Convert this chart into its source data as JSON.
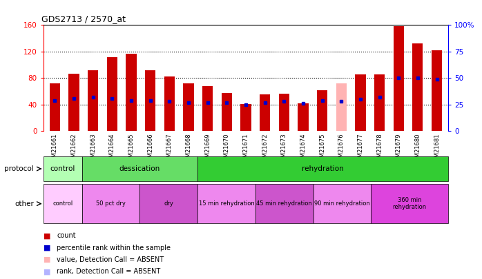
{
  "title": "GDS2713 / 2570_at",
  "samples": [
    "GSM21661",
    "GSM21662",
    "GSM21663",
    "GSM21664",
    "GSM21665",
    "GSM21666",
    "GSM21667",
    "GSM21668",
    "GSM21669",
    "GSM21670",
    "GSM21671",
    "GSM21672",
    "GSM21673",
    "GSM21674",
    "GSM21675",
    "GSM21676",
    "GSM21677",
    "GSM21678",
    "GSM21679",
    "GSM21680",
    "GSM21681"
  ],
  "count_values": [
    72,
    87,
    92,
    112,
    117,
    92,
    83,
    72,
    68,
    58,
    41,
    55,
    57,
    42,
    62,
    72,
    86,
    86,
    158,
    132,
    122
  ],
  "percentile_values": [
    29,
    31,
    32,
    31,
    29,
    29,
    28,
    27,
    27,
    27,
    25,
    27,
    28,
    26,
    29,
    28,
    30,
    32,
    50,
    50,
    49
  ],
  "absent_count": [
    false,
    false,
    false,
    false,
    false,
    false,
    false,
    false,
    false,
    false,
    false,
    false,
    false,
    false,
    false,
    true,
    false,
    false,
    false,
    false,
    false
  ],
  "absent_rank": [
    false,
    false,
    false,
    false,
    false,
    false,
    false,
    false,
    false,
    false,
    false,
    false,
    false,
    false,
    false,
    false,
    false,
    false,
    false,
    false,
    false
  ],
  "bar_color": "#cc0000",
  "absent_bar_color": "#ffb3b3",
  "percentile_color": "#0000cc",
  "absent_percentile_color": "#b3b3ff",
  "ylim_left": [
    0,
    160
  ],
  "ylim_right": [
    0,
    100
  ],
  "yticks_left": [
    0,
    40,
    80,
    120,
    160
  ],
  "yticks_right": [
    0,
    25,
    50,
    75,
    100
  ],
  "ytick_labels_left": [
    "0",
    "40",
    "80",
    "120",
    "160"
  ],
  "ytick_labels_right": [
    "0",
    "25",
    "50",
    "75",
    "100%"
  ],
  "protocol_groups": [
    {
      "label": "control",
      "start": 0,
      "end": 2,
      "color": "#b3ffb3"
    },
    {
      "label": "dessication",
      "start": 2,
      "end": 8,
      "color": "#66dd66"
    },
    {
      "label": "rehydration",
      "start": 8,
      "end": 21,
      "color": "#33cc33"
    }
  ],
  "other_groups": [
    {
      "label": "control",
      "start": 0,
      "end": 2,
      "color": "#ffccff"
    },
    {
      "label": "50 pct dry",
      "start": 2,
      "end": 5,
      "color": "#ee88ee"
    },
    {
      "label": "dry",
      "start": 5,
      "end": 8,
      "color": "#cc55cc"
    },
    {
      "label": "15 min rehydration",
      "start": 8,
      "end": 11,
      "color": "#ee88ee"
    },
    {
      "label": "45 min rehydration",
      "start": 11,
      "end": 14,
      "color": "#cc55cc"
    },
    {
      "label": "90 min rehydration",
      "start": 14,
      "end": 17,
      "color": "#ee88ee"
    },
    {
      "label": "360 min\nrehydration",
      "start": 17,
      "end": 21,
      "color": "#dd44dd"
    }
  ],
  "background_color": "#ffffff",
  "bar_width": 0.55
}
